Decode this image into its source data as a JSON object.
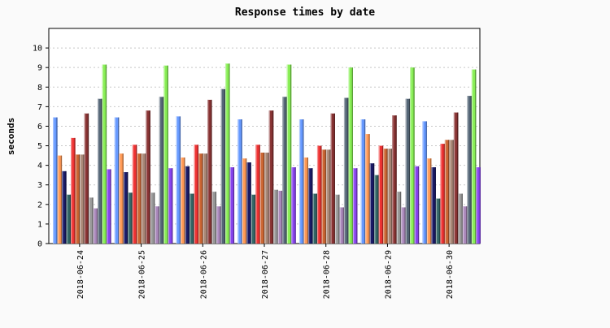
{
  "chart_data": {
    "type": "bar",
    "title": "Response times by date",
    "xlabel": "",
    "ylabel": "seconds",
    "ylim": [
      0,
      11
    ],
    "yticks": [
      0,
      1,
      2,
      3,
      4,
      5,
      6,
      7,
      8,
      9,
      10
    ],
    "grid": true,
    "legend": "none",
    "categories": [
      "2018-06-24",
      "2018-06-25",
      "2018-06-26",
      "2018-06-27",
      "2018-06-28",
      "2018-06-29",
      "2018-06-30"
    ],
    "series": [
      {
        "color": "#6699ff",
        "values": [
          6.45,
          6.45,
          6.5,
          6.35,
          6.35,
          6.35,
          6.25
        ]
      },
      {
        "color": "#ff9955",
        "values": [
          4.5,
          4.6,
          4.4,
          4.35,
          4.4,
          5.6,
          4.35
        ]
      },
      {
        "color": "#1a1a66",
        "values": [
          3.7,
          3.65,
          3.95,
          4.15,
          3.85,
          4.1,
          3.9
        ]
      },
      {
        "color": "#336666",
        "values": [
          2.5,
          2.6,
          2.55,
          2.5,
          2.55,
          3.5,
          2.3
        ]
      },
      {
        "color": "#ee3333",
        "values": [
          5.4,
          5.05,
          5.05,
          5.05,
          5.0,
          5.0,
          5.1
        ]
      },
      {
        "color": "#cc6633",
        "values": [
          4.55,
          4.6,
          4.6,
          4.65,
          4.8,
          4.85,
          5.3
        ]
      },
      {
        "color": "#aa8877",
        "values": [
          4.55,
          4.6,
          4.6,
          4.65,
          4.8,
          4.85,
          5.3
        ]
      },
      {
        "color": "#883333",
        "values": [
          6.65,
          6.8,
          7.35,
          6.8,
          6.65,
          6.55,
          6.7
        ]
      },
      {
        "color": "#999999",
        "values": [
          2.35,
          2.6,
          2.65,
          2.75,
          2.5,
          2.65,
          2.55
        ]
      },
      {
        "color": "#aa88bb",
        "values": [
          1.8,
          1.9,
          1.9,
          2.7,
          1.85,
          1.85,
          1.9
        ]
      },
      {
        "color": "#556677",
        "values": [
          7.4,
          7.5,
          7.9,
          7.5,
          7.45,
          7.4,
          7.55
        ]
      },
      {
        "color": "#88ee55",
        "values": [
          9.15,
          9.1,
          9.2,
          9.15,
          9.0,
          9.0,
          8.9
        ]
      },
      {
        "color": "#8844ee",
        "values": [
          3.8,
          3.85,
          3.9,
          3.9,
          3.85,
          3.95,
          3.9
        ]
      }
    ]
  }
}
